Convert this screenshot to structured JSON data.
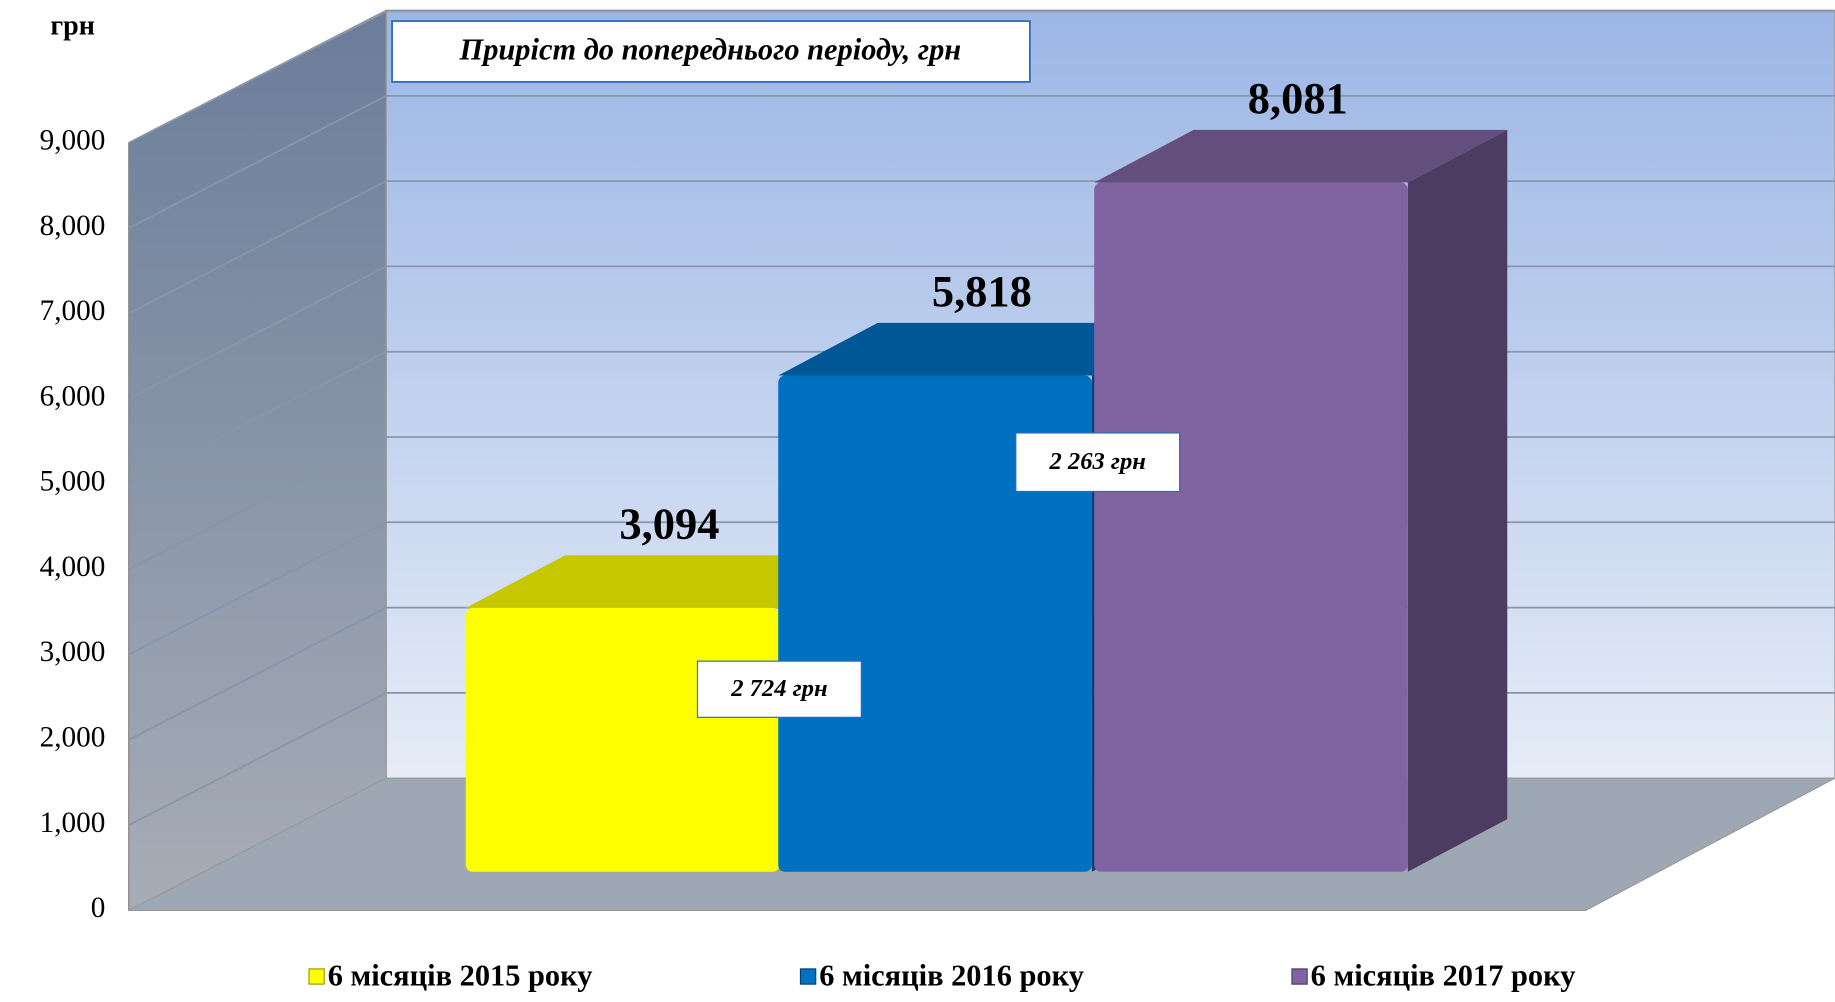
{
  "chart_data": {
    "type": "bar",
    "y_label": "грн",
    "title": "Приріст до попереднього періоду, грн",
    "annotations": [
      "2 724 грн",
      "2 263 грн"
    ],
    "categories": [
      null
    ],
    "series": [
      {
        "name": "6 місяців 2015 року",
        "color": "#ffff00",
        "values": [
          3094
        ],
        "value_labels": [
          "3,094"
        ]
      },
      {
        "name": "6 місяців 2016 року",
        "color": "#0070c0",
        "values": [
          5818
        ],
        "value_labels": [
          "5,818"
        ]
      },
      {
        "name": "6 місяців 2017 року",
        "color": "#8064a2",
        "values": [
          8081
        ],
        "value_labels": [
          "8,081"
        ]
      }
    ],
    "ylim": [
      0,
      9000
    ],
    "yticks": [
      0,
      {
        "value": 1000,
        "label": "1,000"
      },
      {
        "value": 2000,
        "label": "2,000"
      },
      {
        "value": 3000,
        "label": "3,000"
      },
      {
        "value": 4000,
        "label": "4,000"
      },
      {
        "value": 5000,
        "label": "5,000"
      },
      {
        "value": 6000,
        "label": "6,000"
      },
      {
        "value": 7000,
        "label": "7,000"
      },
      {
        "value": 8000,
        "label": "8,000"
      },
      {
        "value": 9000,
        "label": "9,000"
      }
    ],
    "grid": true
  }
}
